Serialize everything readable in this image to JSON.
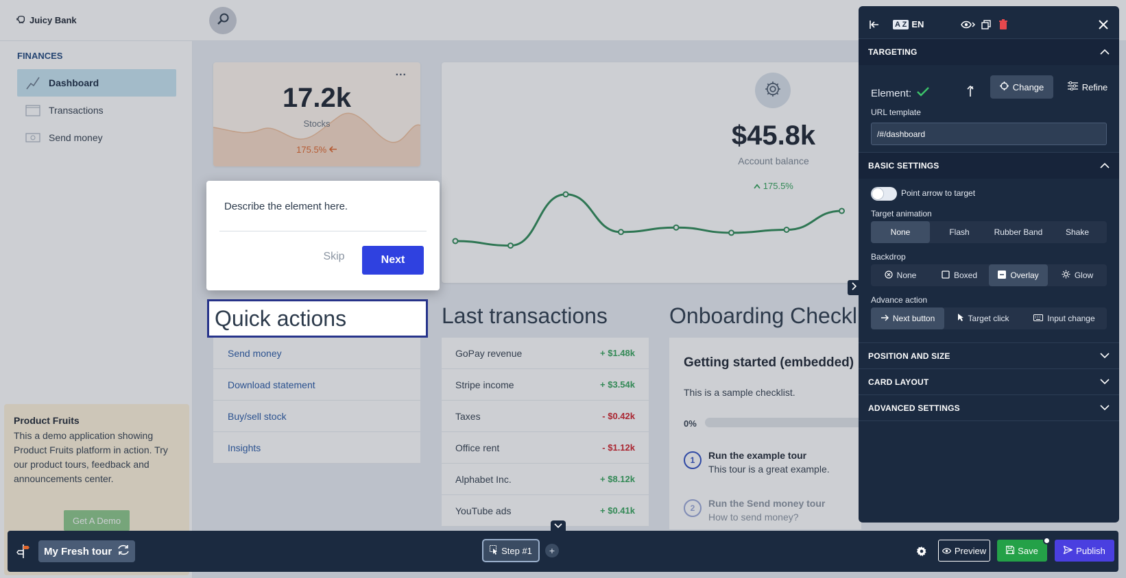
{
  "app": {
    "name": "Juicy Bank",
    "sidebar": {
      "section_title": "FINANCES",
      "items": [
        {
          "label": "Dashboard",
          "icon": "line-chart-icon",
          "active": true
        },
        {
          "label": "Transactions",
          "icon": "folder-icon",
          "active": false
        },
        {
          "label": "Send money",
          "icon": "cash-icon",
          "active": false
        }
      ]
    },
    "promo": {
      "title": "Product Fruits",
      "text": "This a demo application showing Product Fruits platform in action. Try our product tours, feedback and announcements center.",
      "button": "Get A Demo"
    },
    "stock_card": {
      "value": "17.2k",
      "label": "Stocks",
      "change": "175.5%",
      "menu": "..."
    },
    "balance_card": {
      "value": "$45.8k",
      "label": "Account balance",
      "change": "175.5%",
      "line_values": [
        40,
        34,
        102,
        52,
        58,
        51,
        55,
        80
      ]
    },
    "quick_actions": {
      "title": "Quick actions",
      "items": [
        "Send money",
        "Download statement",
        "Buy/sell stock",
        "Insights"
      ]
    },
    "last_transactions": {
      "title": "Last transactions",
      "rows": [
        {
          "name": "GoPay revenue",
          "amount": "+ $1.48k",
          "type": "pos"
        },
        {
          "name": "Stripe income",
          "amount": "+ $3.54k",
          "type": "pos"
        },
        {
          "name": "Taxes",
          "amount": "- $0.42k",
          "type": "neg"
        },
        {
          "name": "Office rent",
          "amount": "- $1.12k",
          "type": "neg"
        },
        {
          "name": "Alphabet Inc.",
          "amount": "+ $8.12k",
          "type": "pos"
        },
        {
          "name": "YouTube ads",
          "amount": "+ $0.41k",
          "type": "pos"
        }
      ]
    },
    "onboarding": {
      "title": "Onboarding Checklist",
      "card_title": "Getting started (embedded)",
      "description": "This is a sample checklist.",
      "progress": "0%",
      "items": [
        {
          "num": "1",
          "title": "Run the example tour",
          "subtitle": "This tour is a great example."
        },
        {
          "num": "2",
          "title": "Run the Send money tour",
          "subtitle": "How to send money?"
        }
      ]
    }
  },
  "popup": {
    "text": "Describe the element here.",
    "skip": "Skip",
    "next": "Next"
  },
  "panel": {
    "language": "EN",
    "language_badge": "A Z",
    "targeting": {
      "title": "TARGETING",
      "element_label": "Element:",
      "change": "Change",
      "refine": "Refine",
      "url_label": "URL template",
      "url_value": "/#/dashboard"
    },
    "basic": {
      "title": "BASIC SETTINGS",
      "toggle_label": "Point arrow to target",
      "animation_label": "Target animation",
      "animation_options": [
        "None",
        "Flash",
        "Rubber Band",
        "Shake"
      ],
      "backdrop_label": "Backdrop",
      "backdrop_options": [
        "None",
        "Boxed",
        "Overlay",
        "Glow"
      ],
      "advance_label": "Advance action",
      "advance_options": [
        "Next button",
        "Target click",
        "Input change"
      ]
    },
    "position": {
      "title": "POSITION AND SIZE"
    },
    "card_layout": {
      "title": "CARD LAYOUT"
    },
    "advanced": {
      "title": "ADVANCED SETTINGS"
    }
  },
  "bottombar": {
    "tour_name": "My Fresh tour",
    "step": "Step #1",
    "add": "+",
    "preview": "Preview",
    "save": "Save",
    "publish": "Publish"
  },
  "colors": {
    "panel_bg": "#1b2a40",
    "primary": "#2f41e0",
    "save": "#24a148",
    "publish": "#4a3fe0",
    "positive": "#35a35b",
    "negative": "#d2212b"
  }
}
